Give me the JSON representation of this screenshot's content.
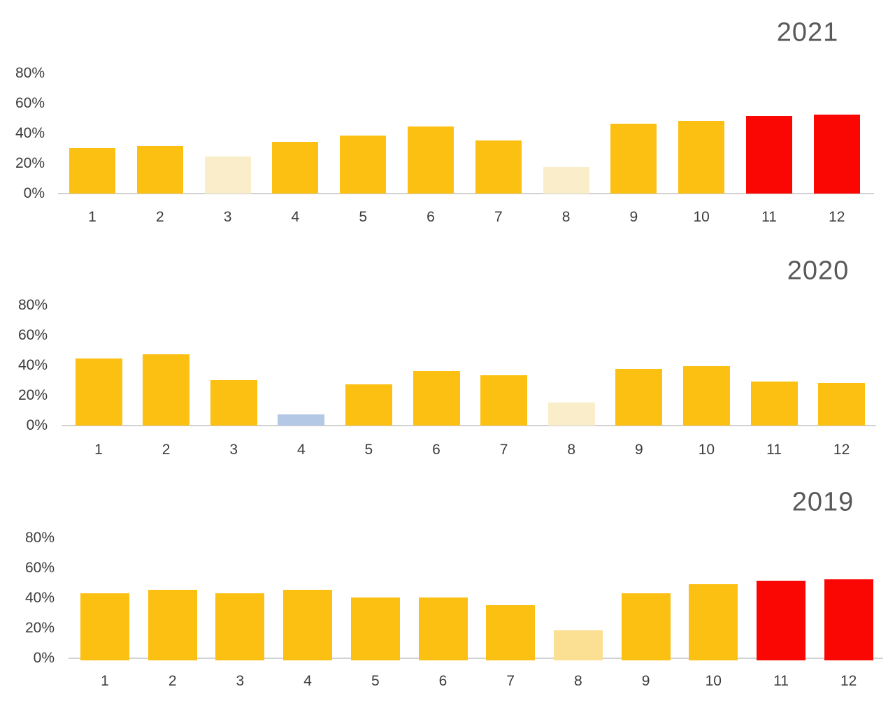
{
  "palette": {
    "gold": "#FCC013",
    "cream": "#FAEDCA",
    "light_gold": "#FBDF92",
    "blue": "#B3C8E5",
    "red": "#FB0703",
    "axis_line": "#D2D2D2",
    "tick_text": "#3C3C3C",
    "title_text": "#595959"
  },
  "chart_data": [
    {
      "type": "bar",
      "title": "2021",
      "title_position": "top-right",
      "categories": [
        "1",
        "2",
        "3",
        "4",
        "5",
        "6",
        "7",
        "8",
        "9",
        "10",
        "11",
        "12"
      ],
      "values": [
        30,
        31,
        24,
        34,
        38,
        44,
        35,
        17,
        46,
        48,
        51,
        52
      ],
      "bar_colors": [
        "gold",
        "gold",
        "cream",
        "gold",
        "gold",
        "gold",
        "gold",
        "cream",
        "gold",
        "gold",
        "red",
        "red"
      ],
      "y_ticks": [
        "0%",
        "20%",
        "40%",
        "60%",
        "80%"
      ],
      "ylim": [
        0,
        80
      ],
      "xlabel": "",
      "ylabel": "",
      "grid": false,
      "legend": "none"
    },
    {
      "type": "bar",
      "title": "2020",
      "title_position": "top-right",
      "categories": [
        "1",
        "2",
        "3",
        "4",
        "5",
        "6",
        "7",
        "8",
        "9",
        "10",
        "11",
        "12"
      ],
      "values": [
        44,
        47,
        30,
        7,
        27,
        36,
        33,
        15,
        37,
        39,
        29,
        28
      ],
      "bar_colors": [
        "gold",
        "gold",
        "gold",
        "blue",
        "gold",
        "gold",
        "gold",
        "cream",
        "gold",
        "gold",
        "gold",
        "gold"
      ],
      "y_ticks": [
        "0%",
        "20%",
        "40%",
        "60%",
        "80%"
      ],
      "ylim": [
        0,
        80
      ],
      "xlabel": "",
      "ylabel": "",
      "grid": false,
      "legend": "none"
    },
    {
      "type": "bar",
      "title": "2019",
      "title_position": "top-right",
      "categories": [
        "1",
        "2",
        "3",
        "4",
        "5",
        "6",
        "7",
        "8",
        "9",
        "10",
        "11",
        "12"
      ],
      "values": [
        43,
        45,
        43,
        45,
        40,
        40,
        35,
        18,
        43,
        49,
        51,
        52
      ],
      "bar_colors": [
        "gold",
        "gold",
        "gold",
        "gold",
        "gold",
        "gold",
        "gold",
        "light_gold",
        "gold",
        "gold",
        "red",
        "red"
      ],
      "y_ticks": [
        "0%",
        "20%",
        "40%",
        "60%",
        "80%"
      ],
      "ylim": [
        0,
        80
      ],
      "xlabel": "",
      "ylabel": "",
      "grid": false,
      "legend": "none"
    }
  ]
}
